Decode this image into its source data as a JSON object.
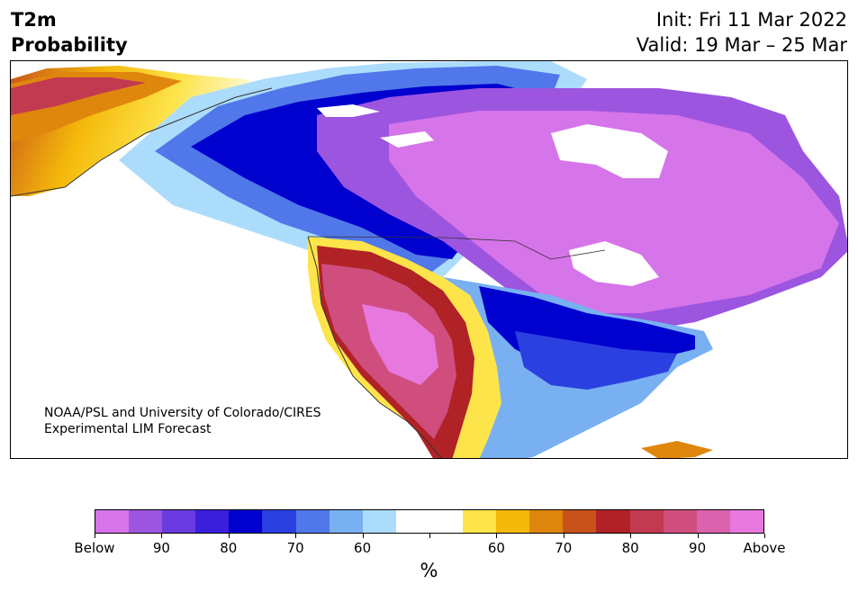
{
  "title": {
    "line1": "T2m",
    "line2": "Probability"
  },
  "header_right": {
    "init": "Init: Fri 11 Mar 2022",
    "valid": "Valid: 19 Mar – 25 Mar"
  },
  "credit": {
    "line1": "NOAA/PSL and University of Colorado/CIRES",
    "line2": "Experimental LIM Forecast"
  },
  "colorbar": {
    "colors": [
      "#d674ea",
      "#9c55df",
      "#6a3be0",
      "#3a1fdc",
      "#0000cf",
      "#2a40e0",
      "#5078ea",
      "#79b0f2",
      "#acdcfc",
      "#ffffff",
      "#ffffff",
      "#fde44a",
      "#f4b90a",
      "#df860d",
      "#c8531a",
      "#b02226",
      "#c23a50",
      "#d04e7d",
      "#db62ad",
      "#e778dd"
    ],
    "tick_labels": [
      "Below",
      "90",
      "80",
      "70",
      "60",
      "",
      "60",
      "70",
      "80",
      "90",
      "Above"
    ],
    "unit": "%"
  }
}
